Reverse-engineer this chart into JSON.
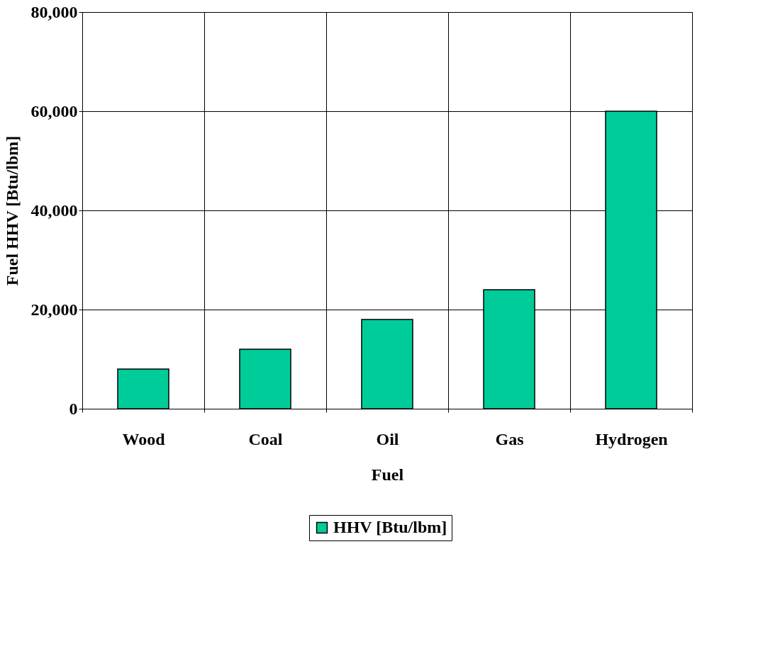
{
  "chart_data": {
    "type": "bar",
    "xlabel": "Fuel",
    "ylabel": "Fuel HHV [Btu/lbm]",
    "categories": [
      "Wood",
      "Coal",
      "Oil",
      "Gas",
      "Hydrogen"
    ],
    "series": [
      {
        "name": "HHV [Btu/lbm]",
        "color": "#00cc99",
        "values": [
          8000,
          12000,
          18000,
          24000,
          60000
        ]
      }
    ],
    "ylim": [
      0,
      80000
    ],
    "yticks": [
      0,
      {
        "value": 20000,
        "label": "20,000"
      },
      {
        "value": 40000,
        "label": "40,000"
      },
      {
        "value": 60000,
        "label": "60,000"
      },
      {
        "value": 80000,
        "label": "80,000"
      }
    ],
    "grid": true,
    "legend": "bottom"
  }
}
